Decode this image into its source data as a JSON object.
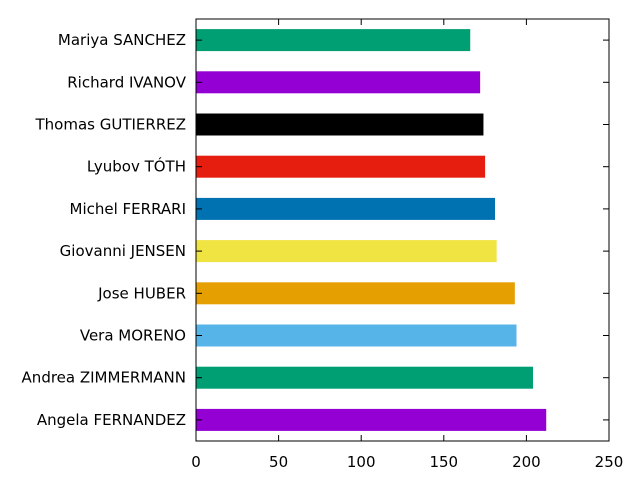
{
  "chart_data": {
    "type": "bar",
    "orientation": "horizontal",
    "title": "",
    "xlabel": "",
    "ylabel": "",
    "xlim": [
      0,
      250
    ],
    "xticks": [
      0,
      50,
      100,
      150,
      200,
      250
    ],
    "grid": false,
    "categories": [
      "Mariya SANCHEZ",
      "Richard IVANOV",
      "Thomas GUTIERREZ",
      "Lyubov TÓTH",
      "Michel FERRARI",
      "Giovanni JENSEN",
      "Jose HUBER",
      "Vera MORENO",
      "Andrea ZIMMERMANN",
      "Angela FERNANDEZ"
    ],
    "values": [
      166,
      172,
      174,
      175,
      181,
      182,
      193,
      194,
      204,
      212
    ],
    "colors": [
      "#009e73",
      "#9400d3",
      "#000000",
      "#e51e10",
      "#0072b2",
      "#f0e442",
      "#e69f00",
      "#56b4e9",
      "#009e73",
      "#9400d3"
    ]
  }
}
